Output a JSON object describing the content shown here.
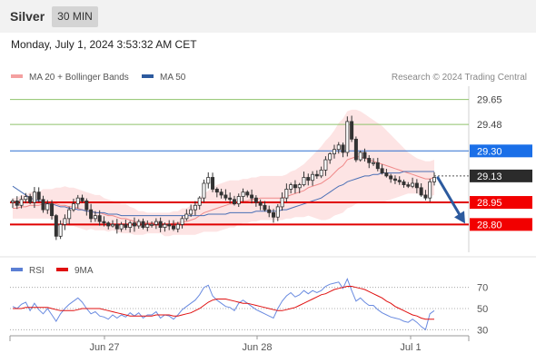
{
  "header": {
    "title": "Silver",
    "timeframe": "30 MIN"
  },
  "datetime": "Monday, July 1, 2024 3:53:32 AM CET",
  "legend": {
    "ma_bb": {
      "label": "MA 20 + Bollinger Bands",
      "color": "#f08080"
    },
    "ma50": {
      "label": "MA 50",
      "color": "#2c5a9e"
    }
  },
  "credit": "Research © 2024 Trading Central",
  "rsi_legend": {
    "rsi": {
      "label": "RSI",
      "color": "#5b7fd4"
    },
    "ma9": {
      "label": "9MA",
      "color": "#e01010"
    }
  },
  "chart_data": {
    "type": "candlestick",
    "ylim": [
      28.58,
      29.74
    ],
    "x_ticks": [
      "Jun 27",
      "Jun 28",
      "Jul 1"
    ],
    "levels": [
      {
        "value": 29.65,
        "label": "29.65",
        "style": "green"
      },
      {
        "value": 29.48,
        "label": "29.48",
        "style": "green"
      },
      {
        "value": 29.3,
        "label": "29.30",
        "style": "blue"
      },
      {
        "value": 29.13,
        "label": "29.13",
        "style": "current"
      },
      {
        "value": 28.95,
        "label": "28.95",
        "style": "red"
      },
      {
        "value": 28.8,
        "label": "28.80",
        "style": "red"
      }
    ],
    "closes": [
      28.96,
      28.93,
      28.97,
      28.99,
      28.95,
      29.02,
      28.97,
      28.9,
      28.94,
      28.86,
      28.72,
      28.8,
      28.84,
      28.9,
      28.94,
      28.98,
      28.96,
      28.9,
      28.84,
      28.86,
      28.82,
      28.81,
      28.79,
      28.8,
      28.77,
      28.8,
      28.78,
      28.81,
      28.79,
      28.82,
      28.78,
      28.8,
      28.8,
      28.82,
      28.78,
      28.8,
      28.79,
      28.77,
      28.8,
      28.84,
      28.87,
      28.9,
      28.93,
      28.98,
      29.08,
      29.12,
      29.04,
      29.02,
      29.0,
      28.98,
      28.97,
      28.94,
      28.99,
      29.02,
      29.0,
      28.98,
      28.95,
      28.93,
      28.9,
      28.88,
      28.85,
      28.92,
      28.98,
      29.04,
      29.07,
      29.05,
      29.07,
      29.12,
      29.1,
      29.14,
      29.13,
      29.17,
      29.24,
      29.28,
      29.31,
      29.34,
      29.29,
      29.5,
      29.38,
      29.24,
      29.29,
      29.25,
      29.22,
      29.22,
      29.18,
      29.15,
      29.13,
      29.11,
      29.1,
      29.09,
      29.07,
      29.06,
      29.08,
      29.05,
      29.0,
      28.98,
      29.09,
      29.12
    ],
    "ma20": [
      28.91,
      28.91,
      28.92,
      28.92,
      28.93,
      28.93,
      28.93,
      28.94,
      28.94,
      28.94,
      28.94,
      28.93,
      28.93,
      28.92,
      28.92,
      28.91,
      28.9,
      28.89,
      28.89,
      28.88,
      28.88,
      28.87,
      28.86,
      28.86,
      28.85,
      28.84,
      28.84,
      28.83,
      28.82,
      28.81,
      28.81,
      28.81,
      28.81,
      28.81,
      28.81,
      28.8,
      28.8,
      28.81,
      28.81,
      28.82,
      28.82,
      28.83,
      28.84,
      28.86,
      28.88,
      28.89,
      28.9,
      28.91,
      28.92,
      28.93,
      28.94,
      28.94,
      28.95,
      28.96,
      28.96,
      28.97,
      28.97,
      28.98,
      28.98,
      28.98,
      28.98,
      28.98,
      28.98,
      28.99,
      29.0,
      29.01,
      29.02,
      29.03,
      29.05,
      29.06,
      29.07,
      29.08,
      29.1,
      29.12,
      29.15,
      29.18,
      29.2,
      29.24,
      29.25,
      29.26,
      29.26,
      29.25,
      29.24,
      29.23,
      29.22,
      29.21,
      29.2,
      29.19,
      29.18,
      29.17,
      29.16,
      29.15,
      29.14,
      29.13,
      29.12,
      29.11,
      29.11,
      29.12
    ],
    "ma50": [
      29.06,
      29.04,
      29.02,
      29.0,
      28.98,
      28.97,
      28.96,
      28.95,
      28.94,
      28.94,
      28.93,
      28.92,
      28.92,
      28.91,
      28.91,
      28.9,
      28.9,
      28.89,
      28.89,
      28.88,
      28.88,
      28.88,
      28.87,
      28.87,
      28.87,
      28.86,
      28.86,
      28.86,
      28.86,
      28.86,
      28.86,
      28.86,
      28.86,
      28.86,
      28.86,
      28.86,
      28.86,
      28.86,
      28.86,
      28.86,
      28.86,
      28.86,
      28.86,
      28.86,
      28.86,
      28.87,
      28.87,
      28.87,
      28.87,
      28.87,
      28.88,
      28.88,
      28.88,
      28.88,
      28.88,
      28.88,
      28.89,
      28.89,
      28.89,
      28.89,
      28.89,
      28.89,
      28.9,
      28.9,
      28.91,
      28.92,
      28.93,
      28.94,
      28.95,
      28.96,
      28.97,
      28.98,
      29.0,
      29.02,
      29.04,
      29.06,
      29.07,
      29.09,
      29.1,
      29.11,
      29.12,
      29.13,
      29.13,
      29.14,
      29.14,
      29.15,
      29.15,
      29.15,
      29.15,
      29.15,
      29.16,
      29.16,
      29.16,
      29.16,
      29.16,
      29.16,
      29.16,
      29.16
    ],
    "bb_width": [
      0.07,
      0.07,
      0.08,
      0.08,
      0.09,
      0.09,
      0.09,
      0.1,
      0.1,
      0.1,
      0.11,
      0.12,
      0.13,
      0.13,
      0.13,
      0.13,
      0.13,
      0.13,
      0.12,
      0.12,
      0.12,
      0.11,
      0.11,
      0.1,
      0.1,
      0.1,
      0.1,
      0.09,
      0.09,
      0.08,
      0.08,
      0.07,
      0.07,
      0.07,
      0.07,
      0.08,
      0.08,
      0.08,
      0.08,
      0.09,
      0.09,
      0.1,
      0.11,
      0.12,
      0.13,
      0.14,
      0.15,
      0.16,
      0.16,
      0.16,
      0.16,
      0.16,
      0.15,
      0.15,
      0.15,
      0.15,
      0.15,
      0.15,
      0.15,
      0.15,
      0.15,
      0.15,
      0.15,
      0.15,
      0.16,
      0.16,
      0.17,
      0.18,
      0.19,
      0.21,
      0.23,
      0.25,
      0.27,
      0.28,
      0.29,
      0.31,
      0.32,
      0.33,
      0.33,
      0.32,
      0.31,
      0.3,
      0.29,
      0.28,
      0.27,
      0.26,
      0.24,
      0.22,
      0.2,
      0.18,
      0.16,
      0.14,
      0.13,
      0.12,
      0.12,
      0.12,
      0.12,
      0.12
    ],
    "projection": {
      "from": 29.13,
      "to": 28.8
    },
    "rsi": {
      "ylim": [
        20,
        80
      ],
      "ticks": [
        70,
        50,
        30
      ],
      "values": [
        52,
        50,
        54,
        56,
        48,
        55,
        49,
        45,
        50,
        44,
        38,
        45,
        50,
        54,
        57,
        60,
        56,
        50,
        45,
        47,
        43,
        42,
        40,
        44,
        41,
        44,
        42,
        46,
        43,
        46,
        41,
        44,
        44,
        47,
        41,
        44,
        43,
        40,
        44,
        49,
        52,
        55,
        58,
        63,
        70,
        72,
        62,
        58,
        55,
        52,
        51,
        48,
        55,
        58,
        55,
        52,
        49,
        47,
        45,
        43,
        41,
        50,
        57,
        62,
        65,
        61,
        63,
        67,
        64,
        67,
        65,
        67,
        71,
        73,
        74,
        75,
        69,
        78,
        67,
        57,
        60,
        56,
        53,
        53,
        49,
        46,
        44,
        42,
        41,
        40,
        38,
        37,
        40,
        37,
        33,
        30,
        45,
        48
      ],
      "ma9": [
        50,
        50,
        50,
        51,
        51,
        51,
        51,
        51,
        51,
        50,
        49,
        48,
        48,
        48,
        48,
        49,
        50,
        50,
        50,
        50,
        50,
        49,
        48,
        47,
        46,
        45,
        44,
        43,
        43,
        43,
        43,
        43,
        43,
        44,
        44,
        44,
        44,
        43,
        43,
        44,
        45,
        46,
        48,
        50,
        53,
        56,
        58,
        59,
        59,
        59,
        58,
        57,
        56,
        55,
        55,
        54,
        53,
        52,
        51,
        50,
        49,
        48,
        48,
        49,
        50,
        51,
        53,
        55,
        57,
        59,
        61,
        63,
        64,
        66,
        68,
        69,
        70,
        71,
        71,
        70,
        69,
        68,
        66,
        64,
        62,
        60,
        57,
        55,
        52,
        50,
        48,
        46,
        44,
        43,
        41,
        40,
        40,
        40
      ]
    }
  }
}
